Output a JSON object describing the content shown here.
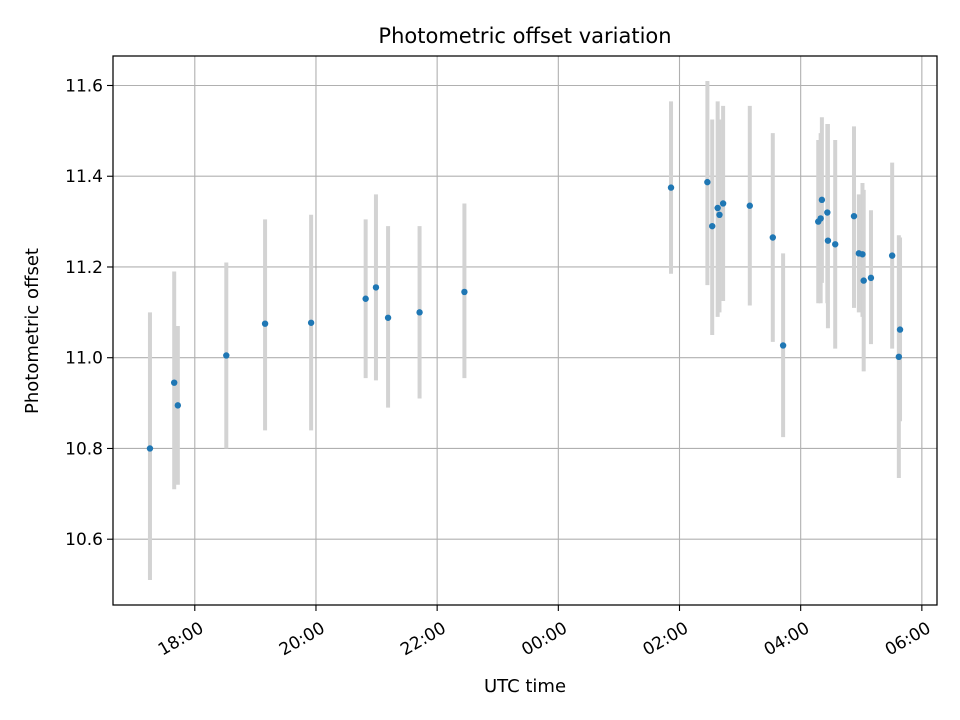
{
  "chart_data": {
    "type": "scatter",
    "title": "Photometric offset variation",
    "xlabel": "UTC time",
    "ylabel": "Photometric offset",
    "grid": true,
    "x_unit": "hours since 18:00 UTC",
    "xlim": [
      -1.35,
      12.25
    ],
    "ylim": [
      10.455,
      11.665
    ],
    "x_ticks": [
      {
        "value": 0,
        "label": "18:00"
      },
      {
        "value": 2,
        "label": "20:00"
      },
      {
        "value": 4,
        "label": "22:00"
      },
      {
        "value": 6,
        "label": "00:00"
      },
      {
        "value": 8,
        "label": "02:00"
      },
      {
        "value": 10,
        "label": "04:00"
      },
      {
        "value": 12,
        "label": "06:00"
      }
    ],
    "y_ticks": [
      {
        "value": 10.6,
        "label": "10.6"
      },
      {
        "value": 10.8,
        "label": "10.8"
      },
      {
        "value": 11.0,
        "label": "11.0"
      },
      {
        "value": 11.2,
        "label": "11.2"
      },
      {
        "value": 11.4,
        "label": "11.4"
      },
      {
        "value": 11.6,
        "label": "11.6"
      }
    ],
    "colors": {
      "point": "#1f77b4",
      "errorbar": "#d3d3d3",
      "grid": "#b0b0b0",
      "axis": "#000000"
    },
    "series": [
      {
        "name": "offset",
        "points": [
          {
            "x": -0.74,
            "y": 10.8,
            "low": 10.51,
            "high": 11.1
          },
          {
            "x": -0.34,
            "y": 10.945,
            "low": 10.71,
            "high": 11.19
          },
          {
            "x": -0.28,
            "y": 10.895,
            "low": 10.72,
            "high": 11.07
          },
          {
            "x": 0.52,
            "y": 11.005,
            "low": 10.8,
            "high": 11.21
          },
          {
            "x": 1.16,
            "y": 11.075,
            "low": 10.84,
            "high": 11.305
          },
          {
            "x": 1.92,
            "y": 11.077,
            "low": 10.84,
            "high": 11.315
          },
          {
            "x": 2.82,
            "y": 11.13,
            "low": 10.955,
            "high": 11.305
          },
          {
            "x": 2.99,
            "y": 11.155,
            "low": 10.95,
            "high": 11.36
          },
          {
            "x": 3.19,
            "y": 11.088,
            "low": 10.89,
            "high": 11.29
          },
          {
            "x": 3.71,
            "y": 11.1,
            "low": 10.91,
            "high": 11.29
          },
          {
            "x": 4.45,
            "y": 11.145,
            "low": 10.955,
            "high": 11.34
          },
          {
            "x": 7.86,
            "y": 11.375,
            "low": 11.185,
            "high": 11.565
          },
          {
            "x": 8.46,
            "y": 11.387,
            "low": 11.16,
            "high": 11.61
          },
          {
            "x": 8.54,
            "y": 11.29,
            "low": 11.05,
            "high": 11.525
          },
          {
            "x": 8.63,
            "y": 11.33,
            "low": 11.09,
            "high": 11.565
          },
          {
            "x": 8.66,
            "y": 11.315,
            "low": 11.1,
            "high": 11.525
          },
          {
            "x": 8.72,
            "y": 11.34,
            "low": 11.125,
            "high": 11.555
          },
          {
            "x": 9.16,
            "y": 11.335,
            "low": 11.115,
            "high": 11.555
          },
          {
            "x": 9.54,
            "y": 11.265,
            "low": 11.035,
            "high": 11.495
          },
          {
            "x": 9.71,
            "y": 11.027,
            "low": 10.825,
            "high": 11.23
          },
          {
            "x": 10.29,
            "y": 11.3,
            "low": 11.12,
            "high": 11.48
          },
          {
            "x": 10.33,
            "y": 11.307,
            "low": 11.12,
            "high": 11.495
          },
          {
            "x": 10.35,
            "y": 11.348,
            "low": 11.165,
            "high": 11.53
          },
          {
            "x": 10.44,
            "y": 11.32,
            "low": 11.12,
            "high": 11.515
          },
          {
            "x": 10.45,
            "y": 11.258,
            "low": 11.065,
            "high": 11.515
          },
          {
            "x": 10.57,
            "y": 11.25,
            "low": 11.02,
            "high": 11.48
          },
          {
            "x": 10.88,
            "y": 11.312,
            "low": 11.11,
            "high": 11.51
          },
          {
            "x": 10.96,
            "y": 11.23,
            "low": 11.1,
            "high": 11.36
          },
          {
            "x": 11.02,
            "y": 11.228,
            "low": 11.09,
            "high": 11.385
          },
          {
            "x": 11.04,
            "y": 11.17,
            "low": 10.97,
            "high": 11.37
          },
          {
            "x": 11.16,
            "y": 11.176,
            "low": 11.03,
            "high": 11.325
          },
          {
            "x": 11.51,
            "y": 11.225,
            "low": 11.02,
            "high": 11.43
          },
          {
            "x": 11.62,
            "y": 11.002,
            "low": 10.735,
            "high": 11.27
          },
          {
            "x": 11.64,
            "y": 11.062,
            "low": 10.86,
            "high": 11.265
          }
        ]
      }
    ]
  }
}
